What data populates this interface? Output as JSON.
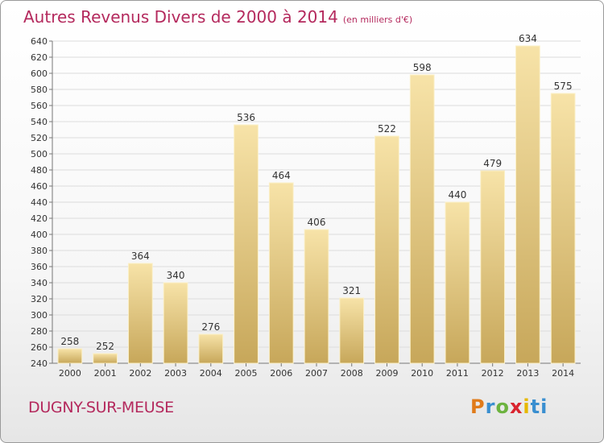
{
  "title": "Autres Revenus Divers de 2000 à 2014",
  "title_unit": "(en milliers d'€)",
  "commune": "DUGNY-SUR-MEUSE",
  "logo": "Proxiti",
  "colors": {
    "title": "#b4295d",
    "bar_light": "#f6e2a6",
    "bar_dark": "#c8a95c",
    "grid": "#dcdcdc"
  },
  "chart_data": {
    "type": "bar",
    "title": "Autres Revenus Divers de 2000 à 2014",
    "xlabel": "",
    "ylabel": "",
    "categories": [
      "2000",
      "2001",
      "2002",
      "2003",
      "2004",
      "2005",
      "2006",
      "2007",
      "2008",
      "2009",
      "2010",
      "2011",
      "2012",
      "2013",
      "2014"
    ],
    "values": [
      258,
      252,
      364,
      340,
      276,
      536,
      464,
      406,
      321,
      522,
      598,
      440,
      479,
      634,
      575
    ],
    "ylim": [
      240,
      640
    ],
    "yticks": [
      240,
      260,
      280,
      300,
      320,
      340,
      360,
      380,
      400,
      420,
      440,
      460,
      480,
      500,
      520,
      540,
      560,
      580,
      600,
      620,
      640
    ],
    "grid": true,
    "data_labels": true
  }
}
